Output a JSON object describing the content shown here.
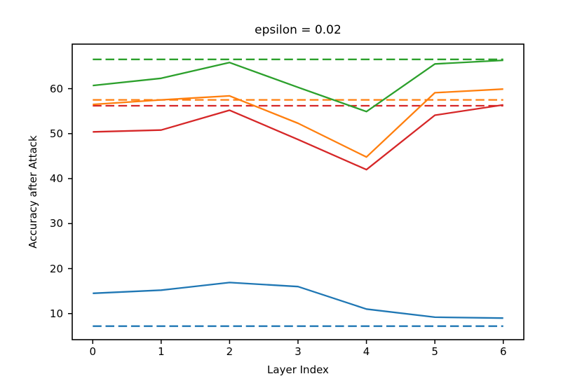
{
  "figure": {
    "background": "#ffffff",
    "axes_edge_color": "#000000",
    "tick_color": "#000000"
  },
  "chart_data": {
    "type": "line",
    "title": "epsilon = 0.02",
    "xlabel": "Layer Index",
    "ylabel": "Accuracy after Attack",
    "grid": false,
    "legend": null,
    "x": [
      0,
      1,
      2,
      3,
      4,
      5,
      6
    ],
    "xticks": [
      0,
      1,
      2,
      3,
      4,
      5,
      6
    ],
    "yticks": [
      10,
      20,
      30,
      40,
      50,
      60
    ],
    "xlim": [
      -0.3,
      6.3
    ],
    "ylim": [
      4.2,
      69.9
    ],
    "series": [
      {
        "name": "blue-dashed-baseline",
        "style": "dashed",
        "color": "#1f77b4",
        "values": [
          7.2,
          7.2,
          7.2,
          7.2,
          7.2,
          7.2,
          7.2
        ]
      },
      {
        "name": "orange-dashed-baseline",
        "style": "dashed",
        "color": "#ff7f0e",
        "values": [
          57.5,
          57.5,
          57.5,
          57.5,
          57.5,
          57.5,
          57.5
        ]
      },
      {
        "name": "green-dashed-baseline",
        "style": "dashed",
        "color": "#2ca02c",
        "values": [
          66.5,
          66.5,
          66.5,
          66.5,
          66.5,
          66.5,
          66.5
        ]
      },
      {
        "name": "red-dashed-baseline",
        "style": "dashed",
        "color": "#d62728",
        "values": [
          56.2,
          56.2,
          56.2,
          56.2,
          56.2,
          56.2,
          56.2
        ]
      },
      {
        "name": "blue-solid",
        "style": "solid",
        "color": "#1f77b4",
        "values": [
          14.5,
          15.2,
          16.9,
          16.0,
          11.0,
          9.2,
          9.0
        ]
      },
      {
        "name": "orange-solid",
        "style": "solid",
        "color": "#ff7f0e",
        "values": [
          56.5,
          57.5,
          58.4,
          52.3,
          44.8,
          59.1,
          59.9
        ]
      },
      {
        "name": "green-solid",
        "style": "solid",
        "color": "#2ca02c",
        "values": [
          60.7,
          62.3,
          65.8,
          60.3,
          54.9,
          65.5,
          66.3
        ]
      },
      {
        "name": "red-solid",
        "style": "solid",
        "color": "#d62728",
        "values": [
          50.4,
          50.8,
          55.2,
          48.7,
          42.0,
          54.1,
          56.4
        ]
      }
    ]
  }
}
